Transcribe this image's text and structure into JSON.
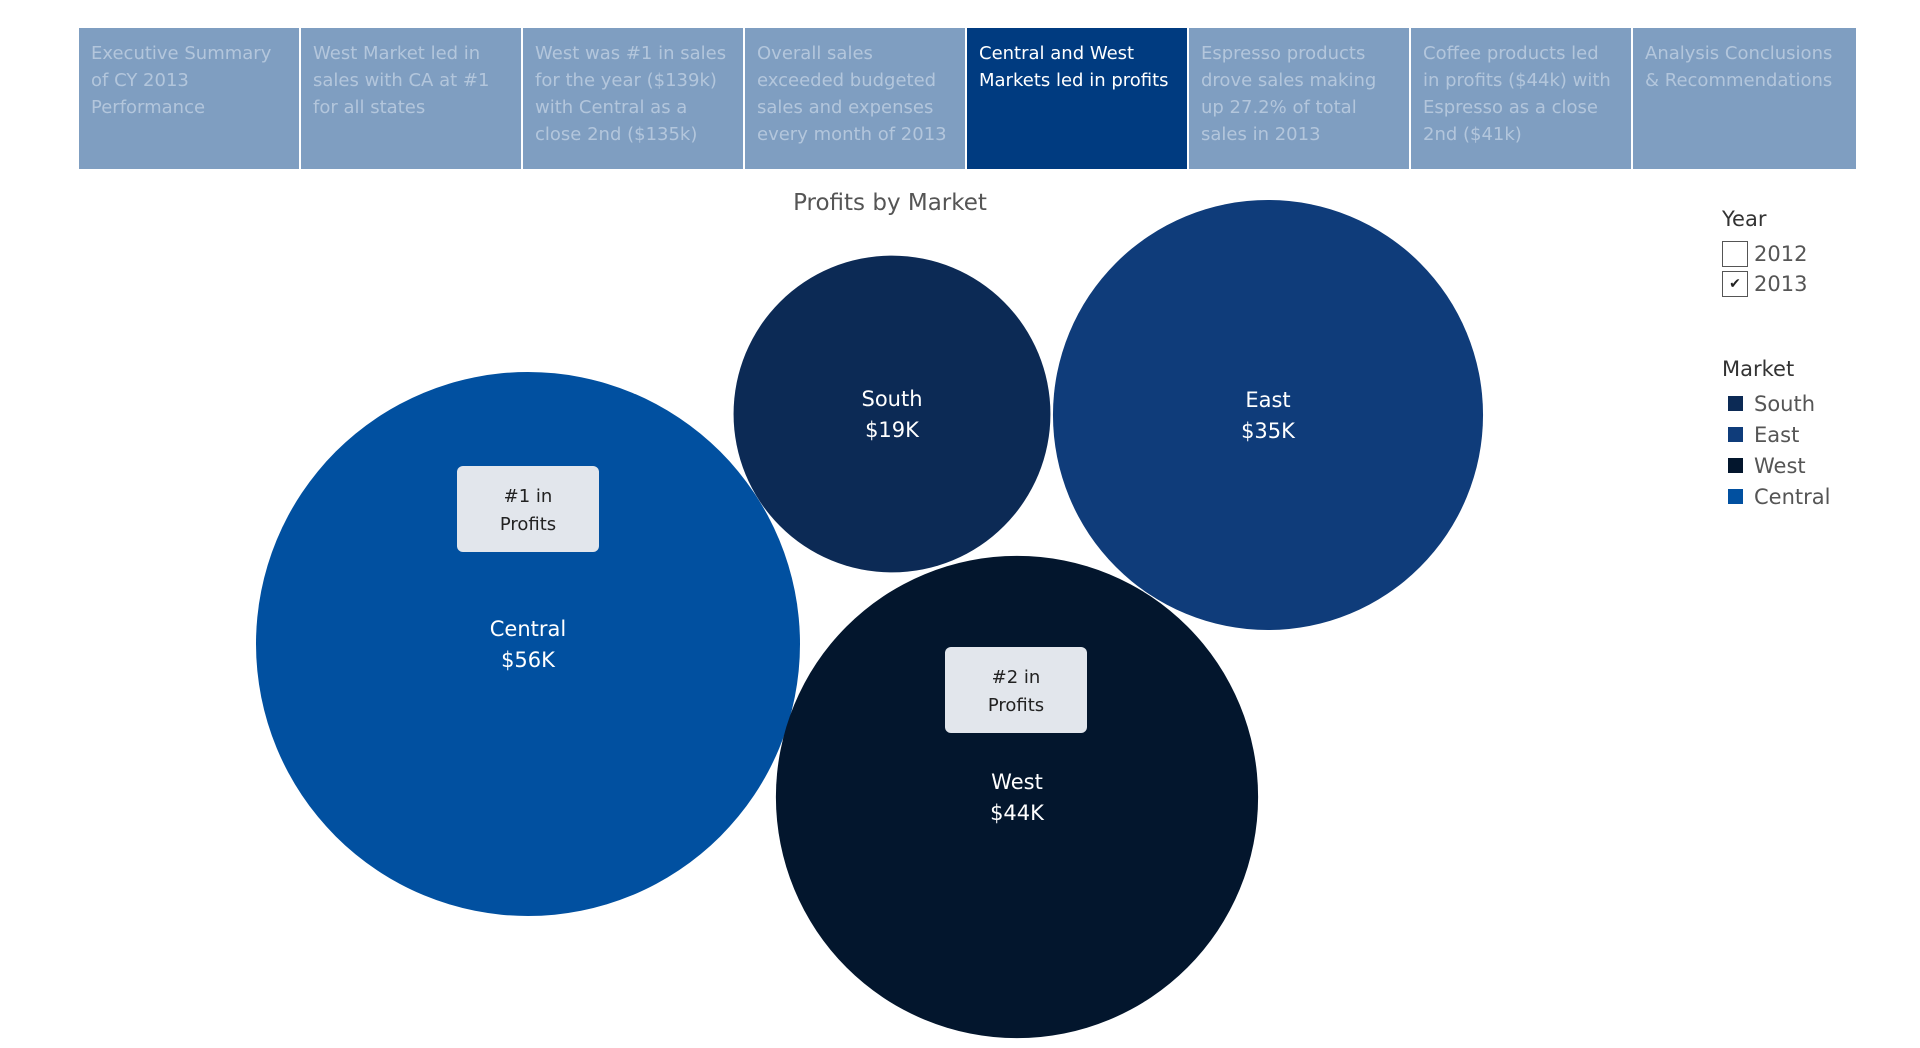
{
  "story_points": [
    {
      "label": "Executive Summary of CY 2013 Performance",
      "active": false
    },
    {
      "label": "West Market led in sales with CA at #1 for all states",
      "active": false
    },
    {
      "label": "West was #1 in sales for the year ($139k) with Central as a close 2nd ($135k)",
      "active": false
    },
    {
      "label": "Overall sales exceeded budgeted sales and expenses every month of 2013",
      "active": false
    },
    {
      "label": "Central and West Markets led in profits",
      "active": true
    },
    {
      "label": "Espresso products drove sales making up  27.2% of total sales in 2013",
      "active": false
    },
    {
      "label": "Coffee products led in profits ($44k) with Espresso as a close 2nd ($41k)",
      "active": false
    },
    {
      "label": "Analysis Conclusions & Recommendations",
      "active": false
    }
  ],
  "year_filter": {
    "title": "Year",
    "options": [
      {
        "label": "2012",
        "checked": false
      },
      {
        "label": "2013",
        "checked": true
      }
    ]
  },
  "market_legend": {
    "title": "Market",
    "items": [
      {
        "label": "South",
        "color": "#0c2a55"
      },
      {
        "label": "East",
        "color": "#0f3c7a"
      },
      {
        "label": "West",
        "color": "#03162d"
      },
      {
        "label": "Central",
        "color": "#0150a0"
      }
    ]
  },
  "chart_data": {
    "type": "bubble",
    "title": "Profits by Market",
    "series": [
      {
        "name": "Central",
        "value": 56,
        "value_label": "$56K",
        "color": "#0150a0"
      },
      {
        "name": "West",
        "value": 44,
        "value_label": "$44K",
        "color": "#03162d"
      },
      {
        "name": "East",
        "value": 35,
        "value_label": "$35K",
        "color": "#0f3c7a"
      },
      {
        "name": "South",
        "value": 19,
        "value_label": "$19K",
        "color": "#0c2a55"
      }
    ],
    "annotations": [
      {
        "market": "Central",
        "text_lines": [
          "#1 in",
          "Profits"
        ]
      },
      {
        "market": "West",
        "text_lines": [
          "#2 in",
          "Profits"
        ]
      }
    ]
  }
}
